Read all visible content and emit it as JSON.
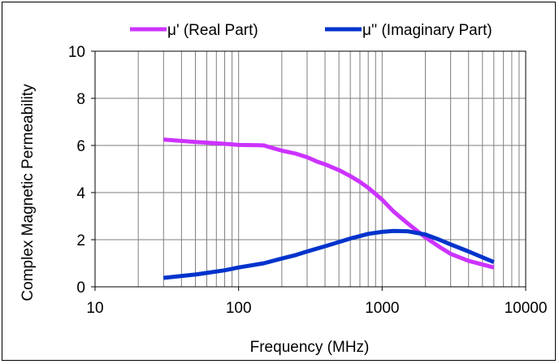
{
  "chart_data": {
    "type": "line",
    "xscale": "log",
    "xlim": [
      10,
      10000
    ],
    "ylim": [
      0,
      10
    ],
    "xticks": [
      10,
      100,
      1000,
      10000
    ],
    "yticks": [
      0,
      2,
      4,
      6,
      8,
      10
    ],
    "xlabel": "Frequency (MHz)",
    "ylabel": "Complex Magnetic Permeability",
    "grid": true,
    "legend_position": "top",
    "series": [
      {
        "name": "μ' (Real Part)",
        "color": "#cc33ff",
        "x": [
          30,
          50,
          80,
          100,
          140,
          150,
          170,
          200,
          250,
          300,
          350,
          400,
          500,
          600,
          700,
          800,
          1000,
          1200,
          1500,
          2000,
          2500,
          3000,
          4000,
          6000
        ],
        "y": [
          6.25,
          6.15,
          6.07,
          6.02,
          6.01,
          6.0,
          5.9,
          5.78,
          5.65,
          5.5,
          5.32,
          5.2,
          4.95,
          4.7,
          4.45,
          4.2,
          3.7,
          3.2,
          2.7,
          2.1,
          1.7,
          1.4,
          1.1,
          0.82
        ]
      },
      {
        "name": "μ'' (Imaginary Part)",
        "color": "#0033cc",
        "x": [
          30,
          50,
          80,
          100,
          150,
          200,
          250,
          300,
          400,
          500,
          600,
          700,
          800,
          1000,
          1200,
          1500,
          2000,
          2500,
          3000,
          4000,
          6000
        ],
        "y": [
          0.38,
          0.52,
          0.7,
          0.82,
          1.0,
          1.2,
          1.35,
          1.5,
          1.72,
          1.9,
          2.05,
          2.15,
          2.25,
          2.33,
          2.37,
          2.36,
          2.22,
          2.0,
          1.8,
          1.5,
          1.05
        ]
      }
    ]
  }
}
